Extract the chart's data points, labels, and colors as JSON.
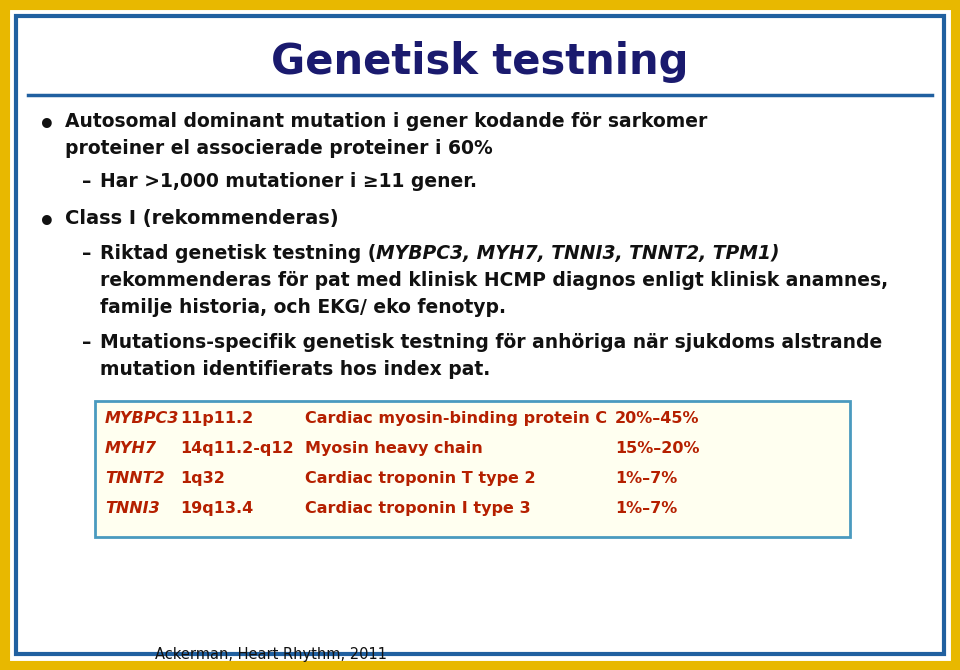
{
  "title": "Genetisk testning",
  "title_color": "#1a1a6e",
  "bg_color": "#ffffff",
  "border_outer_color": "#e8b800",
  "border_inner_color": "#2060a0",
  "bullet1_line1": "Autosomal dominant mutation i gener kodande för sarkomer",
  "bullet1_line2": "proteiner el associerade proteiner i 60%",
  "sub1": "Har >1,000 mutationer i ≥11 gener.",
  "bullet2": "Class I (rekommenderas)",
  "sub2a_pre": "Riktad genetisk testning (",
  "sub2a_italic": "MYBPC3, MYH7, TNNI3, TNNT2, TPM1)",
  "sub2a_line2": "rekommenderas för pat med klinisk HCMP diagnos enligt klinisk anamnes,",
  "sub2a_line3": "familje historia, och EKG/ eko fenotyp.",
  "sub2b_line1": "Mutations-specifik genetisk testning för anhöriga när sjukdoms alstrande",
  "sub2b_line2": "mutation identifierats hos index pat.",
  "table_bg": "#fffff0",
  "table_border": "#4a9abf",
  "table_text_color": "#b52000",
  "table_rows": [
    [
      "MYBPC3",
      "11p11.2",
      "Cardiac myosin-binding protein C",
      "20%–45%"
    ],
    [
      "MYH7",
      "14q11.2-q12",
      "Myosin heavy chain",
      "15%–20%"
    ],
    [
      "TNNT2",
      "1q32",
      "Cardiac troponin T type 2",
      "1%–7%"
    ],
    [
      "TNNI3",
      "19q13.4",
      "Cardiac troponin I type 3",
      "1%–7%"
    ]
  ],
  "col_offsets": [
    10,
    85,
    210,
    520
  ],
  "footer": "Ackerman, Heart Rhythm, 2011",
  "main_text_color": "#111111",
  "line_color": "#2060a0"
}
